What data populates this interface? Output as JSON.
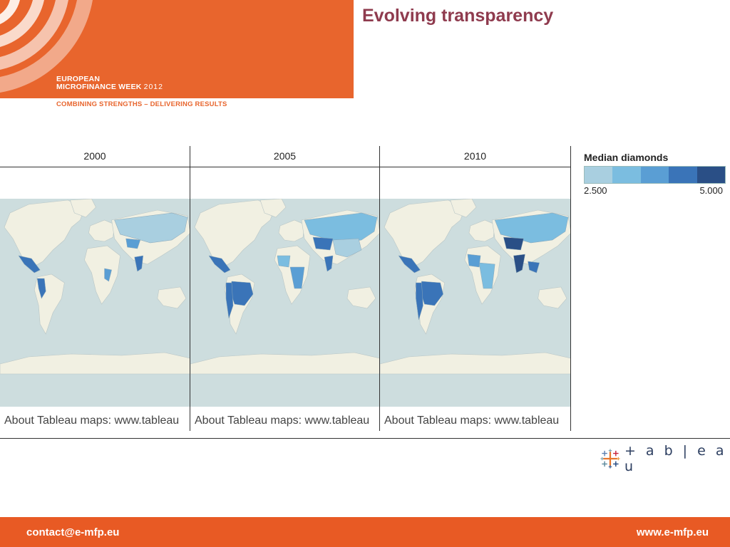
{
  "header": {
    "brand_line1": "EUROPEAN",
    "brand_line2": "MICROFINANCE WEEK",
    "brand_year": "2012",
    "tagline": "COMBINING STRENGTHS – DELIVERING RESULTS",
    "accent_color": "#e8652d"
  },
  "slide_title": "Evolving transparency",
  "map_panels": [
    {
      "year": "2000",
      "attribution": "About Tableau maps: www.tableau"
    },
    {
      "year": "2005",
      "attribution": "About Tableau maps: www.tableau"
    },
    {
      "year": "2010",
      "attribution": "About Tableau maps: www.tableau"
    }
  ],
  "legend": {
    "title": "Median diamonds",
    "min_label": "2.500",
    "max_label": "5.000",
    "colors": [
      "#a9cfe0",
      "#7bbde0",
      "#5a9ed4",
      "#3a74b8",
      "#2a4f86"
    ]
  },
  "logo": {
    "icon": "tableau-plus-icon",
    "wordmark": "+ a b | e a u"
  },
  "footer": {
    "email": "contact@e-mfp.eu",
    "website": "www.e-mfp.eu"
  }
}
